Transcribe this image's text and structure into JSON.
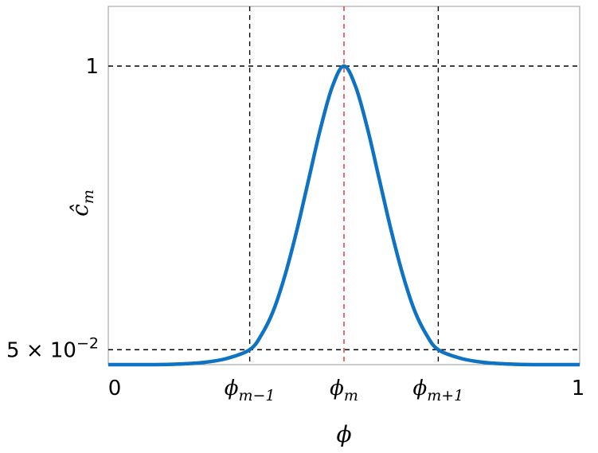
{
  "chart_data": {
    "type": "line",
    "xlabel": "ϕ",
    "ylabel": "ĉ_m",
    "xlim": [
      0,
      1
    ],
    "ylim": [
      0,
      1.2
    ],
    "grid": false,
    "x_ticks": [
      {
        "value": 0,
        "label": "0"
      },
      {
        "value": 0.3,
        "label": "ϕ_{m−1}"
      },
      {
        "value": 0.5,
        "label": "ϕ_m"
      },
      {
        "value": 0.7,
        "label": "ϕ_{m+1}"
      },
      {
        "value": 1,
        "label": "1"
      }
    ],
    "y_ticks": [
      {
        "value": 0.05,
        "label": "5 × 10^{−2}"
      },
      {
        "value": 1,
        "label": "1"
      }
    ],
    "reference_lines": [
      {
        "orientation": "vertical",
        "x": 0.3,
        "color": "#000000",
        "style": "dashed"
      },
      {
        "orientation": "vertical",
        "x": 0.5,
        "color": "#e03030",
        "style": "dashed"
      },
      {
        "orientation": "vertical",
        "x": 0.7,
        "color": "#000000",
        "style": "dashed"
      },
      {
        "orientation": "horizontal",
        "y": 1,
        "color": "#000000",
        "style": "dashed"
      },
      {
        "orientation": "horizontal",
        "y": 0.05,
        "color": "#000000",
        "style": "dashed"
      }
    ],
    "series": [
      {
        "color": "#0e73c2",
        "x": [
          0,
          0.05,
          0.1,
          0.15,
          0.2,
          0.25,
          0.3,
          0.325,
          0.35,
          0.375,
          0.4,
          0.425,
          0.45,
          0.475,
          0.5,
          0.525,
          0.55,
          0.575,
          0.6,
          0.625,
          0.65,
          0.675,
          0.7,
          0.75,
          0.8,
          0.85,
          0.9,
          0.95,
          1
        ],
        "y": [
          0,
          0,
          0,
          0.002,
          0.007,
          0.02,
          0.05,
          0.1,
          0.18,
          0.3,
          0.45,
          0.62,
          0.79,
          0.93,
          1,
          0.93,
          0.79,
          0.62,
          0.45,
          0.3,
          0.18,
          0.1,
          0.05,
          0.02,
          0.007,
          0.002,
          0,
          0,
          0
        ]
      }
    ]
  }
}
